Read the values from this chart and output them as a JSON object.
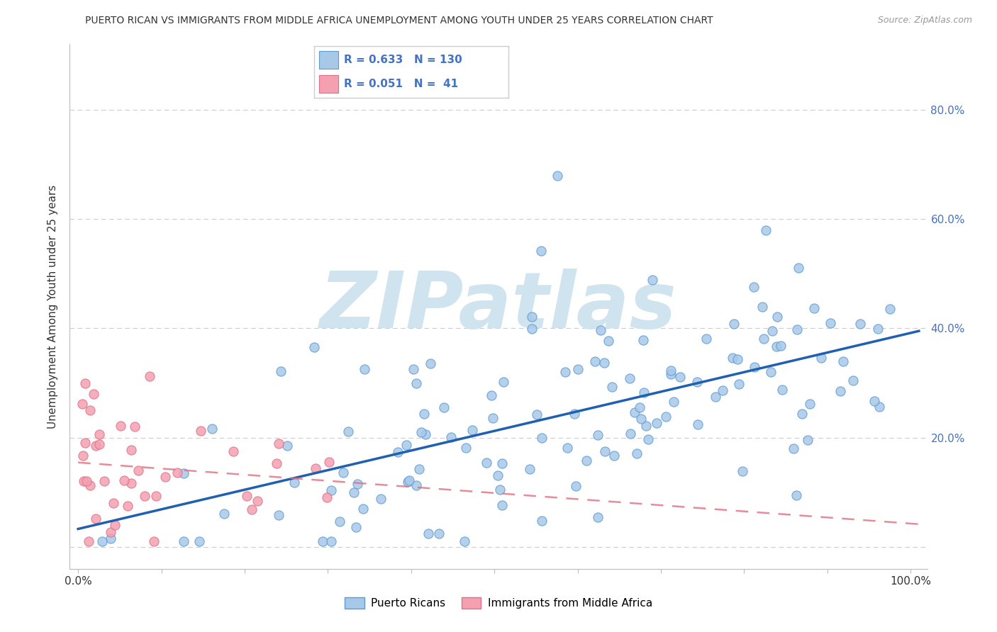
{
  "title": "PUERTO RICAN VS IMMIGRANTS FROM MIDDLE AFRICA UNEMPLOYMENT AMONG YOUTH UNDER 25 YEARS CORRELATION CHART",
  "source": "Source: ZipAtlas.com",
  "ylabel": "Unemployment Among Youth under 25 years",
  "xlim": [
    -0.01,
    1.02
  ],
  "ylim": [
    -0.04,
    0.92
  ],
  "xtick_positions": [
    0.0,
    0.1,
    0.2,
    0.3,
    0.4,
    0.5,
    0.6,
    0.7,
    0.8,
    0.9,
    1.0
  ],
  "xtick_labels": [
    "0.0%",
    "",
    "",
    "",
    "",
    "",
    "",
    "",
    "",
    "",
    "100.0%"
  ],
  "ytick_positions": [
    0.0,
    0.2,
    0.4,
    0.6,
    0.8
  ],
  "ytick_labels": [
    "",
    "20.0%",
    "40.0%",
    "60.0%",
    "80.0%"
  ],
  "blue_color": "#a8c8e8",
  "blue_edge": "#5b9bd5",
  "pink_color": "#f4a0b0",
  "pink_edge": "#e07088",
  "line_blue_color": "#2060b0",
  "line_pink_color": "#e07080",
  "watermark_text": "ZIPatlas",
  "watermark_color": "#d0e4f0",
  "legend_label_blue": "Puerto Ricans",
  "legend_label_pink": "Immigrants from Middle Africa",
  "title_fontsize": 10,
  "source_fontsize": 9,
  "tick_fontsize": 11,
  "ylabel_fontsize": 11
}
